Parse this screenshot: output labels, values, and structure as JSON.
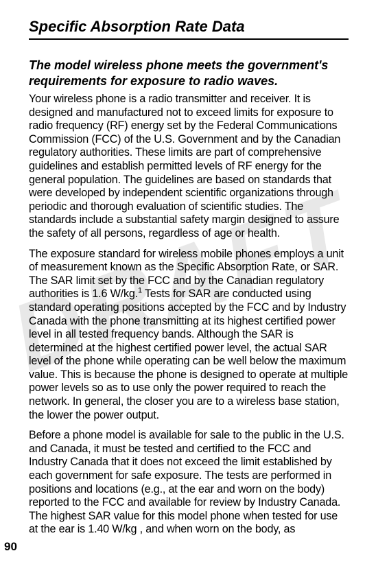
{
  "watermark_text": "DRAFT",
  "page_number": "90",
  "heading": "Specific Absorption Rate Data",
  "subheading": "The model wireless phone meets the government's requirements for exposure to radio waves.",
  "para1": "Your wireless phone is a radio transmitter and receiver. It is designed and manufactured not to exceed limits for exposure to radio frequency (RF) energy set by the Federal Communications Commission (FCC) of the U.S. Government and by the Canadian regulatory authorities. These limits are part of comprehensive guidelines and establish permitted levels of RF energy for the general population. The guidelines are based on standards that were developed by independent scientific organizations through periodic and thorough evaluation of scientific studies. The standards include a substantial safety margin designed to assure the safety of all persons, regardless of age or health.",
  "para2_pre": "The exposure standard for wireless mobile phones employs a unit of measurement known as the Specific Absorption Rate, or SAR. The SAR limit set by the FCC and by the Canadian regulatory authorities is 1.6 W/kg.",
  "para2_sup": "1",
  "para2_post": " Tests for SAR are conducted using standard operating positions accepted by the FCC and by Industry Canada with the phone transmitting at its highest certified power level in all tested frequency bands. Although the SAR is determined at the highest certified power level, the actual SAR level of the phone while operating can be well below the maximum value. This is because the phone is designed to operate at multiple power levels so as to use only the power required to reach the network. In general, the closer you are to a wireless base station, the lower the power output.",
  "para3": "Before a phone model is available for sale to the public in the U.S. and Canada, it must be tested and certified to the FCC and Industry Canada that it does not exceed the limit established by each government for safe exposure. The tests are performed in positions and locations (e.g., at the ear and worn on the body) reported to the FCC and available for review by Industry Canada. The highest SAR value for this model phone when tested for use at the ear is 1.40   W/kg , and when worn on the body, as",
  "colors": {
    "text": "#000000",
    "background": "#ffffff",
    "watermark": "#e8e8e8"
  },
  "typography": {
    "heading_fontsize": 22,
    "subheading_fontsize": 18,
    "body_fontsize": 16.2,
    "pagenum_fontsize": 17
  }
}
